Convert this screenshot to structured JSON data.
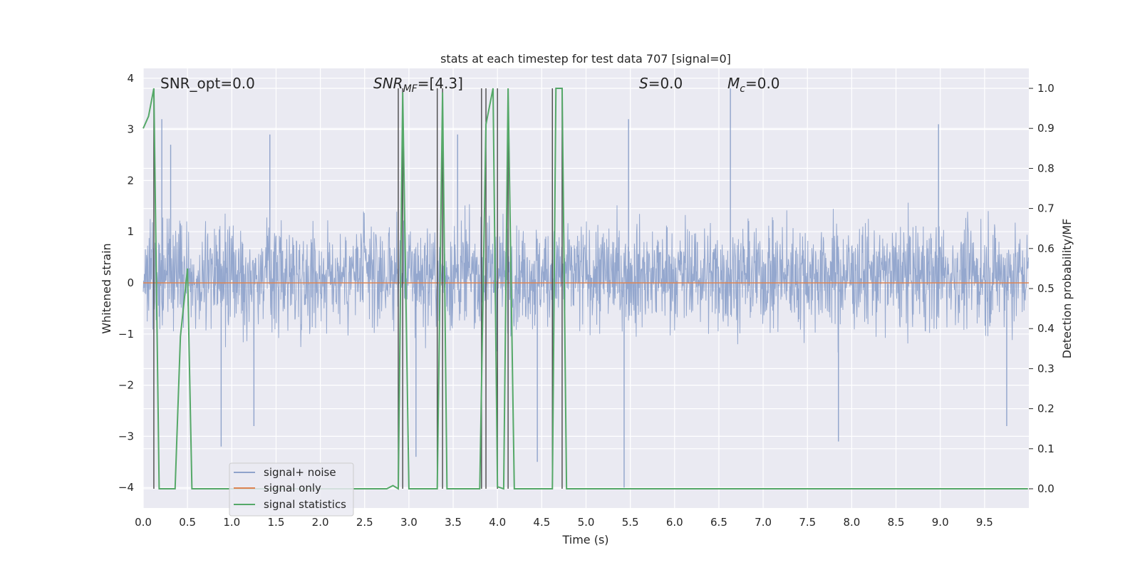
{
  "chart_data": {
    "type": "line",
    "title": "stats at each timestep for test data 707 [signal=0]",
    "xlabel": "Time (s)",
    "ylabel": "Whitened strain",
    "ylabel_right": "Detection probability/MF",
    "xlim": [
      0,
      10
    ],
    "ylim": [
      -4.4,
      4.2
    ],
    "ylim_right": [
      -0.05,
      1.05
    ],
    "x_ticks": [
      "0.0",
      "0.5",
      "1.0",
      "1.5",
      "2.0",
      "2.5",
      "3.0",
      "3.5",
      "4.0",
      "4.5",
      "5.0",
      "5.5",
      "6.0",
      "6.5",
      "7.0",
      "7.5",
      "8.0",
      "8.5",
      "9.0",
      "9.5"
    ],
    "y_ticks": [
      "4",
      "3",
      "2",
      "1",
      "0",
      "−1",
      "−2",
      "−3",
      "−4"
    ],
    "y_ticks_right": [
      "1.0",
      "0.9",
      "0.8",
      "0.7",
      "0.6",
      "0.5",
      "0.4",
      "0.3",
      "0.2",
      "0.1",
      "0.0"
    ],
    "grid": true,
    "legend_position": "lower-left",
    "annotations": {
      "snr_opt": "SNR_opt=0.0",
      "snr_mf_base": "SNR",
      "snr_mf_sub": "MF",
      "snr_mf_value": "=[4.3]",
      "s_label": "S",
      "s_value": "=0.0",
      "mc_label": "M",
      "mc_sub": "c",
      "mc_value": "=0.0"
    },
    "series": [
      {
        "name": "signal+ noise",
        "color": "#8fa3cb",
        "description_envelope": {
          "typical_range": [
            -1.8,
            2.2
          ],
          "peak_max": 3.8,
          "peak_min": -4.0
        },
        "spikes": [
          {
            "x": 0.21,
            "y": 3.2
          },
          {
            "x": 0.31,
            "y": 2.7
          },
          {
            "x": 0.88,
            "y": -3.2
          },
          {
            "x": 1.25,
            "y": -2.8
          },
          {
            "x": 1.43,
            "y": 2.9
          },
          {
            "x": 3.08,
            "y": -3.4
          },
          {
            "x": 3.55,
            "y": 2.9
          },
          {
            "x": 4.45,
            "y": -3.5
          },
          {
            "x": 5.43,
            "y": -4.0
          },
          {
            "x": 5.48,
            "y": 3.2
          },
          {
            "x": 6.63,
            "y": 3.8
          },
          {
            "x": 7.85,
            "y": -3.1
          },
          {
            "x": 8.98,
            "y": 3.1
          },
          {
            "x": 9.75,
            "y": -2.8
          }
        ]
      },
      {
        "name": "signal only",
        "color": "#dd8452",
        "x": [
          0,
          10
        ],
        "y": [
          0,
          0
        ]
      },
      {
        "name": "signal statistics",
        "color": "#55a868",
        "axis": "right",
        "x": [
          0,
          0.06,
          0.12,
          0.18,
          0.36,
          0.42,
          0.5,
          0.55,
          2.75,
          2.82,
          2.88,
          2.93,
          3.0,
          3.32,
          3.38,
          3.43,
          3.8,
          3.87,
          3.95,
          4.0,
          4.07,
          4.12,
          4.19,
          4.62,
          4.66,
          4.73,
          4.78,
          9.99
        ],
        "y": [
          0.9,
          0.93,
          1.0,
          0.0,
          0.0,
          0.38,
          0.55,
          0.0,
          0.0,
          0.008,
          0.0,
          0.99,
          0.0,
          0.0,
          0.99,
          0.0,
          0.0,
          0.91,
          1.0,
          0.005,
          0.0,
          1.0,
          0.0,
          0.0,
          1.0,
          1.0,
          0.0,
          0.0
        ]
      }
    ],
    "vertical_lines": [
      0.12,
      2.88,
      2.93,
      3.32,
      3.38,
      3.82,
      3.87,
      4.0,
      4.12,
      4.62,
      4.73
    ]
  },
  "legend": {
    "items": [
      {
        "label": "signal+ noise",
        "color": "#8fa3cb"
      },
      {
        "label": "signal only",
        "color": "#dd8452"
      },
      {
        "label": "signal statistics",
        "color": "#55a868"
      }
    ]
  }
}
